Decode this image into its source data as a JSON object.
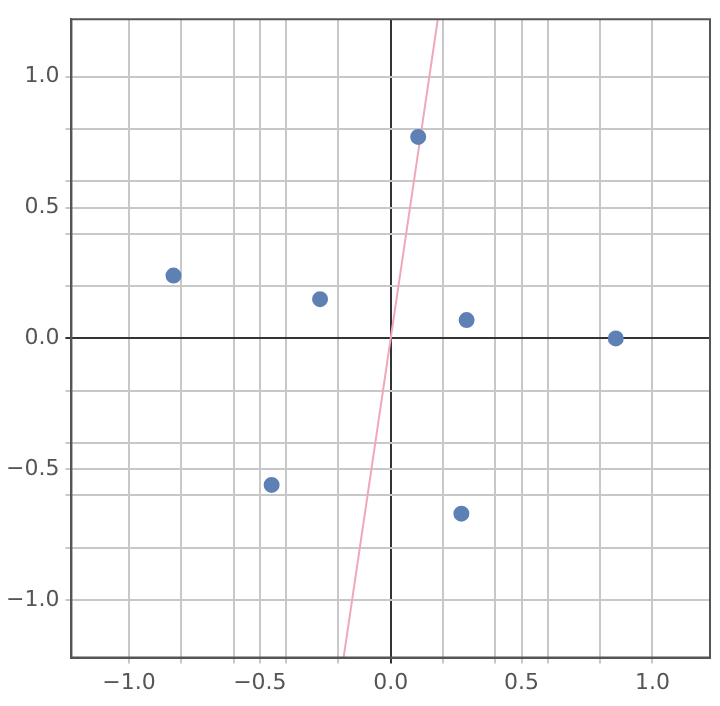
{
  "chart_data": {
    "type": "scatter",
    "xlim": [
      -1.22,
      1.22
    ],
    "ylim": [
      -1.22,
      1.22
    ],
    "xticks": [
      {
        "value": -1.0,
        "label": "−1.0"
      },
      {
        "value": -0.8,
        "label": null
      },
      {
        "value": -0.6,
        "label": null
      },
      {
        "value": -0.5,
        "label": "−0.5"
      },
      {
        "value": -0.4,
        "label": null
      },
      {
        "value": -0.2,
        "label": null
      },
      {
        "value": 0,
        "label": "0.0"
      },
      {
        "value": 0.2,
        "label": null
      },
      {
        "value": 0.4,
        "label": null
      },
      {
        "value": 0.5,
        "label": "0.5"
      },
      {
        "value": 0.6,
        "label": null
      },
      {
        "value": 0.8,
        "label": null
      },
      {
        "value": 1.0,
        "label": "1.0"
      }
    ],
    "yticks": [
      {
        "value": -1.0,
        "label": "−1.0"
      },
      {
        "value": -0.8,
        "label": null
      },
      {
        "value": -0.6,
        "label": null
      },
      {
        "value": -0.5,
        "label": "−0.5"
      },
      {
        "value": -0.4,
        "label": null
      },
      {
        "value": -0.2,
        "label": null
      },
      {
        "value": 0,
        "label": "0.0"
      },
      {
        "value": 0.2,
        "label": null
      },
      {
        "value": 0.4,
        "label": null
      },
      {
        "value": 0.5,
        "label": "0.5"
      },
      {
        "value": 0.6,
        "label": null
      },
      {
        "value": 0.8,
        "label": null
      },
      {
        "value": 1.0,
        "label": "1.0"
      }
    ],
    "series": [
      {
        "type": "scatter",
        "color": "#5e81b5",
        "x": [
          -0.83,
          -0.27,
          0.105,
          0.29,
          0.86,
          -0.455,
          0.27
        ],
        "values": [
          0.24,
          0.15,
          0.77,
          0.07,
          0.0,
          -0.56,
          -0.67
        ]
      },
      {
        "type": "line",
        "marker": "none",
        "color": "#f0a8b8",
        "x": [
          -0.18,
          0.18
        ],
        "values": [
          -1.22,
          1.22
        ]
      }
    ],
    "grid": true,
    "legend": false,
    "marker": "circle"
  }
}
